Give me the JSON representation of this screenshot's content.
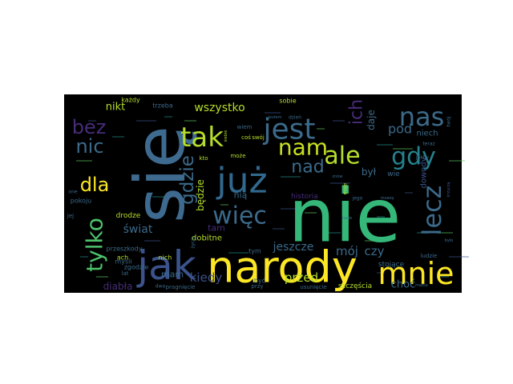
{
  "wordcloud": {
    "background": "#000000",
    "palette": [
      "#440154",
      "#3b528b",
      "#21918c",
      "#5ec962",
      "#fde725"
    ],
    "words": [
      {
        "text": "nie",
        "weight": 100,
        "color": "#35b779",
        "rotated": false
      },
      {
        "text": "się",
        "weight": 92,
        "color": "#3e6a8f",
        "rotated": true
      },
      {
        "text": "narody",
        "weight": 82,
        "color": "#fde725",
        "rotated": false
      },
      {
        "text": "jak",
        "weight": 78,
        "color": "#3b528b",
        "rotated": false
      },
      {
        "text": "mnie",
        "weight": 60,
        "color": "#fde725",
        "rotated": false
      },
      {
        "text": "już",
        "weight": 62,
        "color": "#31688e",
        "rotated": false
      },
      {
        "text": "jest",
        "weight": 52,
        "color": "#3b6a8a",
        "rotated": false
      },
      {
        "text": "tak",
        "weight": 50,
        "color": "#b5de2b",
        "rotated": false
      },
      {
        "text": "nas",
        "weight": 46,
        "color": "#3b6a8a",
        "rotated": false
      },
      {
        "text": "tylko",
        "weight": 48,
        "color": "#4ec36b",
        "rotated": true
      },
      {
        "text": "lecz",
        "weight": 46,
        "color": "#3b6a8a",
        "rotated": true
      },
      {
        "text": "gdy",
        "weight": 42,
        "color": "#26828e",
        "rotated": false
      },
      {
        "text": "ale",
        "weight": 42,
        "color": "#b5de2b",
        "rotated": false
      },
      {
        "text": "nam",
        "weight": 40,
        "color": "#c8e020",
        "rotated": false
      },
      {
        "text": "więc",
        "weight": 40,
        "color": "#3b6a8a",
        "rotated": false
      },
      {
        "text": "bez",
        "weight": 36,
        "color": "#472c7a",
        "rotated": false
      },
      {
        "text": "nic",
        "weight": 34,
        "color": "#3b6a8a",
        "rotated": false
      },
      {
        "text": "dla",
        "weight": 34,
        "color": "#fde725",
        "rotated": false
      },
      {
        "text": "gdzie",
        "weight": 32,
        "color": "#3b6a8a",
        "rotated": true
      },
      {
        "text": "nad",
        "weight": 32,
        "color": "#3b6a8a",
        "rotated": false
      },
      {
        "text": "ich",
        "weight": 30,
        "color": "#472c7a",
        "rotated": true
      },
      {
        "text": "pod",
        "weight": 22,
        "color": "#3b6a8a",
        "rotated": false
      },
      {
        "text": "wszystko",
        "weight": 18,
        "color": "#b5de2b",
        "rotated": false
      },
      {
        "text": "nikt",
        "weight": 17,
        "color": "#b5de2b",
        "rotated": false
      },
      {
        "text": "jeszcze",
        "weight": 18,
        "color": "#3b6a8a",
        "rotated": false
      },
      {
        "text": "mój",
        "weight": 20,
        "color": "#3b6a8a",
        "rotated": false
      },
      {
        "text": "czy",
        "weight": 20,
        "color": "#3b6a8a",
        "rotated": false
      },
      {
        "text": "przed",
        "weight": 20,
        "color": "#b5de2b",
        "rotated": false
      },
      {
        "text": "kiedy",
        "weight": 20,
        "color": "#3b528b",
        "rotated": false
      },
      {
        "text": "świat",
        "weight": 19,
        "color": "#3b6a8a",
        "rotated": false
      },
      {
        "text": "będzie",
        "weight": 16,
        "color": "#b5de2b",
        "rotated": true
      },
      {
        "text": "mam",
        "weight": 15,
        "color": "#3b6a8a",
        "rotated": false
      },
      {
        "text": "diabła",
        "weight": 15,
        "color": "#472c7a",
        "rotated": false
      },
      {
        "text": "choć",
        "weight": 17,
        "color": "#3b6a8a",
        "rotated": false
      },
      {
        "text": "dobitne",
        "weight": 12,
        "color": "#b5de2b",
        "rotated": false
      },
      {
        "text": "daje",
        "weight": 15,
        "color": "#3b6a8a",
        "rotated": true
      },
      {
        "text": "był",
        "weight": 15,
        "color": "#3b6a8a",
        "rotated": false
      },
      {
        "text": "niech",
        "weight": 13,
        "color": "#3b6a8a",
        "rotated": false
      },
      {
        "text": "dowody",
        "weight": 13,
        "color": "#3b528b",
        "rotated": true
      },
      {
        "text": "wie",
        "weight": 12,
        "color": "#3b6a8a",
        "rotated": false
      },
      {
        "text": "nią",
        "weight": 14,
        "color": "#3b6a8a",
        "rotated": false
      },
      {
        "text": "tam",
        "weight": 14,
        "color": "#472c7a",
        "rotated": false
      },
      {
        "text": "historia",
        "weight": 11,
        "color": "#472c7a",
        "rotated": false
      },
      {
        "text": "szczęścia",
        "weight": 11,
        "color": "#b5de2b",
        "rotated": false
      },
      {
        "text": "stojące",
        "weight": 11,
        "color": "#3b6a8a",
        "rotated": false
      },
      {
        "text": "przeszkody",
        "weight": 10,
        "color": "#3b6a8a",
        "rotated": false
      },
      {
        "text": "pragnięcie",
        "weight": 9,
        "color": "#3b6a8a",
        "rotated": false
      },
      {
        "text": "usunięcie",
        "weight": 9,
        "color": "#3b6a8a",
        "rotated": false
      },
      {
        "text": "drodze",
        "weight": 10,
        "color": "#b5de2b",
        "rotated": false
      },
      {
        "text": "zgodzie",
        "weight": 9,
        "color": "#3b6a8a",
        "rotated": false
      },
      {
        "text": "pokoju",
        "weight": 9,
        "color": "#3b6a8a",
        "rotated": false
      },
      {
        "text": "każdy",
        "weight": 9,
        "color": "#b5de2b",
        "rotated": false
      },
      {
        "text": "trzeba",
        "weight": 9,
        "color": "#3b6a8a",
        "rotated": false
      },
      {
        "text": "sobie",
        "weight": 9,
        "color": "#b5de2b",
        "rotated": false
      },
      {
        "text": "myśli",
        "weight": 9,
        "color": "#3b6a8a",
        "rotated": false
      },
      {
        "text": "ludzie",
        "weight": 9,
        "color": "#3b6a8a",
        "rotated": false
      },
      {
        "text": "nich",
        "weight": 9,
        "color": "#b5de2b",
        "rotated": false
      },
      {
        "text": "ach",
        "weight": 9,
        "color": "#b5de2b",
        "rotated": false
      },
      {
        "text": "może",
        "weight": 8,
        "color": "#b5de2b",
        "rotated": false
      },
      {
        "text": "być",
        "weight": 9,
        "color": "#3b6a8a",
        "rotated": false
      },
      {
        "text": "tym",
        "weight": 9,
        "color": "#3b6a8a",
        "rotated": false
      },
      {
        "text": "wiem",
        "weight": 8,
        "color": "#3b6a8a",
        "rotated": false
      },
      {
        "text": "coś",
        "weight": 8,
        "color": "#b5de2b",
        "rotated": false
      },
      {
        "text": "swój",
        "weight": 8,
        "color": "#b5de2b",
        "rotated": false
      },
      {
        "text": "kto",
        "weight": 8,
        "color": "#b5de2b",
        "rotated": false
      },
      {
        "text": "dwa",
        "weight": 7,
        "color": "#3b6a8a",
        "rotated": false
      },
      {
        "text": "przy",
        "weight": 8,
        "color": "#3b6a8a",
        "rotated": false
      },
      {
        "text": "jego",
        "weight": 7,
        "color": "#3b6a8a",
        "rotated": false
      },
      {
        "text": "jej",
        "weight": 8,
        "color": "#3b6a8a",
        "rotated": false
      },
      {
        "text": "lat",
        "weight": 8,
        "color": "#3b6a8a",
        "rotated": false
      },
      {
        "text": "one",
        "weight": 7,
        "color": "#3b6a8a",
        "rotated": false
      },
      {
        "text": "teraz",
        "weight": 7,
        "color": "#3b6a8a",
        "rotated": false
      },
      {
        "text": "jakby",
        "weight": 7,
        "color": "#3b6a8a",
        "rotated": false
      },
      {
        "text": "dzień",
        "weight": 7,
        "color": "#3b6a8a",
        "rotated": false
      },
      {
        "text": "jestem",
        "weight": 6,
        "color": "#3b6a8a",
        "rotated": false
      },
      {
        "text": "znów",
        "weight": 6,
        "color": "#3b6a8a",
        "rotated": false
      },
      {
        "text": "życia",
        "weight": 7,
        "color": "#3b6a8a",
        "rotated": true
      },
      {
        "text": "moje",
        "weight": 7,
        "color": "#b5de2b",
        "rotated": true
      },
      {
        "text": "razie",
        "weight": 6,
        "color": "#3b6a8a",
        "rotated": false
      },
      {
        "text": "matka",
        "weight": 6,
        "color": "#3b6a8a",
        "rotated": false
      },
      {
        "text": "było",
        "weight": 6,
        "color": "#3b6a8a",
        "rotated": false
      },
      {
        "text": "twój",
        "weight": 7,
        "color": "#3b6a8a",
        "rotated": true
      },
      {
        "text": "mowią",
        "weight": 5,
        "color": "#3b6a8a",
        "rotated": false
      },
      {
        "text": "krzyczą",
        "weight": 6,
        "color": "#3b528b",
        "rotated": true
      },
      {
        "text": "siebie",
        "weight": 6,
        "color": "#b5de2b",
        "rotated": true
      }
    ]
  }
}
